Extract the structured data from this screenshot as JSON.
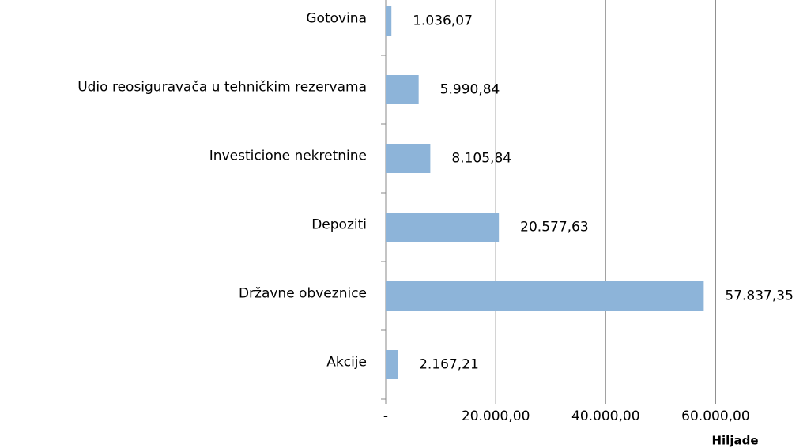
{
  "chart_data": {
    "type": "hbar",
    "categories": [
      "Gotovina",
      "Udio reosiguravača u tehničkim rezervama",
      "Investicione nekretnine",
      "Depoziti",
      "Državne obveznice",
      "Akcije"
    ],
    "values": [
      1036.07,
      5990.84,
      8105.84,
      20577.63,
      57837.35,
      2167.21
    ],
    "value_labels": [
      "1.036,07",
      "5.990,84",
      "8.105,84",
      "20.577,63",
      "57.837,35",
      "2.167,21"
    ],
    "color": "#8db4d9",
    "xlim": [
      0,
      70000
    ],
    "xticks": [
      {
        "value": 0,
        "label": "-"
      },
      {
        "value": 20000,
        "label": "20.000,00"
      },
      {
        "value": 40000,
        "label": "40.000,00"
      },
      {
        "value": 60000,
        "label": "60.000,00"
      }
    ],
    "x_label": "Hiljade",
    "grid": true
  }
}
